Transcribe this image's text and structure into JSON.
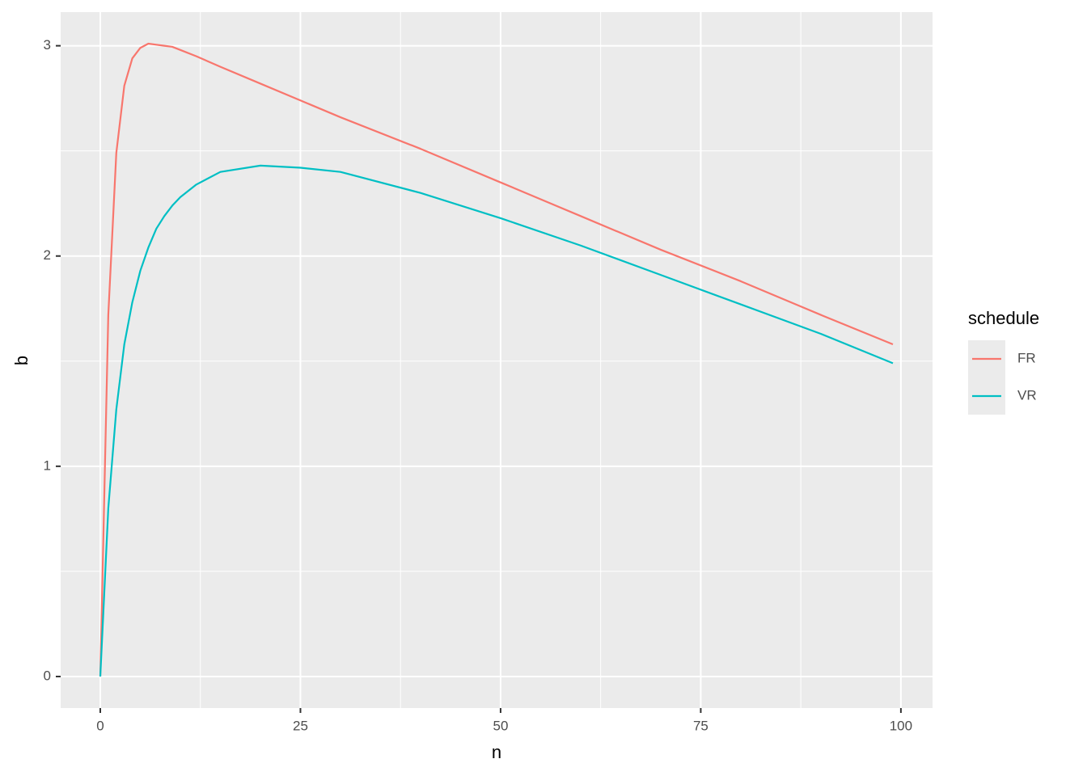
{
  "chart_data": {
    "type": "line",
    "x_label": "n",
    "y_label": "b",
    "legend_title": "schedule",
    "x": [
      0,
      1,
      2,
      3,
      4,
      5,
      6,
      7,
      8,
      9,
      10,
      12,
      15,
      20,
      25,
      30,
      40,
      50,
      60,
      70,
      80,
      90,
      99
    ],
    "series": [
      {
        "name": "FR",
        "color": "#F8766D",
        "values": [
          0,
          1.72,
          2.49,
          2.81,
          2.94,
          2.99,
          3.01,
          3.005,
          3.0,
          2.995,
          2.98,
          2.95,
          2.9,
          2.82,
          2.74,
          2.66,
          2.51,
          2.35,
          2.19,
          2.03,
          1.88,
          1.72,
          1.58
        ]
      },
      {
        "name": "VR",
        "color": "#00BFC4",
        "values": [
          0,
          0.8,
          1.27,
          1.58,
          1.78,
          1.93,
          2.04,
          2.13,
          2.19,
          2.24,
          2.28,
          2.34,
          2.4,
          2.43,
          2.42,
          2.4,
          2.3,
          2.18,
          2.05,
          1.91,
          1.77,
          1.63,
          1.49
        ]
      }
    ],
    "xlim": [
      -4.95,
      103.95
    ],
    "ylim": [
      -0.15,
      3.16
    ],
    "xticks": [
      0,
      25,
      50,
      75,
      100
    ],
    "yticks": [
      0,
      1,
      2,
      3
    ],
    "xminor": [
      12.5,
      37.5,
      62.5,
      87.5
    ],
    "yminor": [
      0.5,
      1.5,
      2.5
    ],
    "grid": true,
    "legend": "right"
  }
}
